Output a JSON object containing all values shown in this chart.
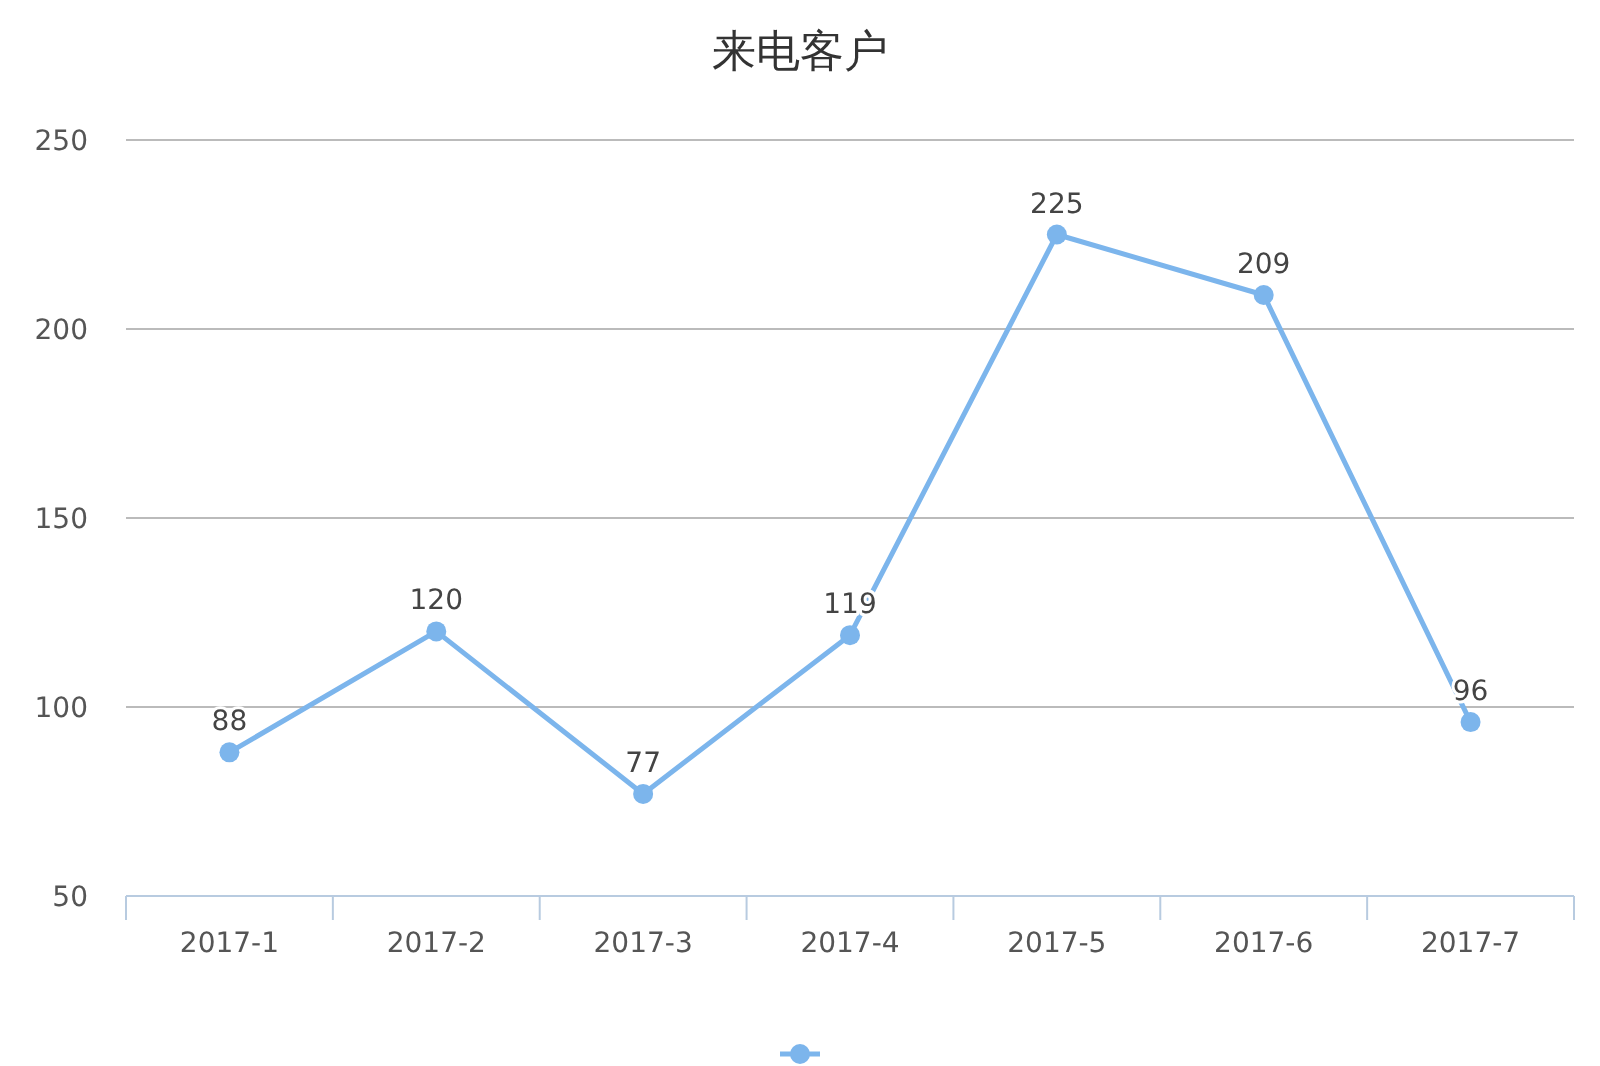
{
  "chart_data": {
    "type": "line",
    "title": "来电客户",
    "categories": [
      "2017-1",
      "2017-2",
      "2017-3",
      "2017-4",
      "2017-5",
      "2017-6",
      "2017-7"
    ],
    "series": [
      {
        "color": "#7cb5ec",
        "values": [
          88,
          120,
          77,
          119,
          225,
          209,
          96
        ]
      }
    ],
    "ylim": [
      50,
      250
    ],
    "yticks": [
      50,
      100,
      150,
      200,
      250
    ],
    "grid": "y",
    "marker": "circle",
    "line_style": "solid",
    "data_labels": true
  }
}
